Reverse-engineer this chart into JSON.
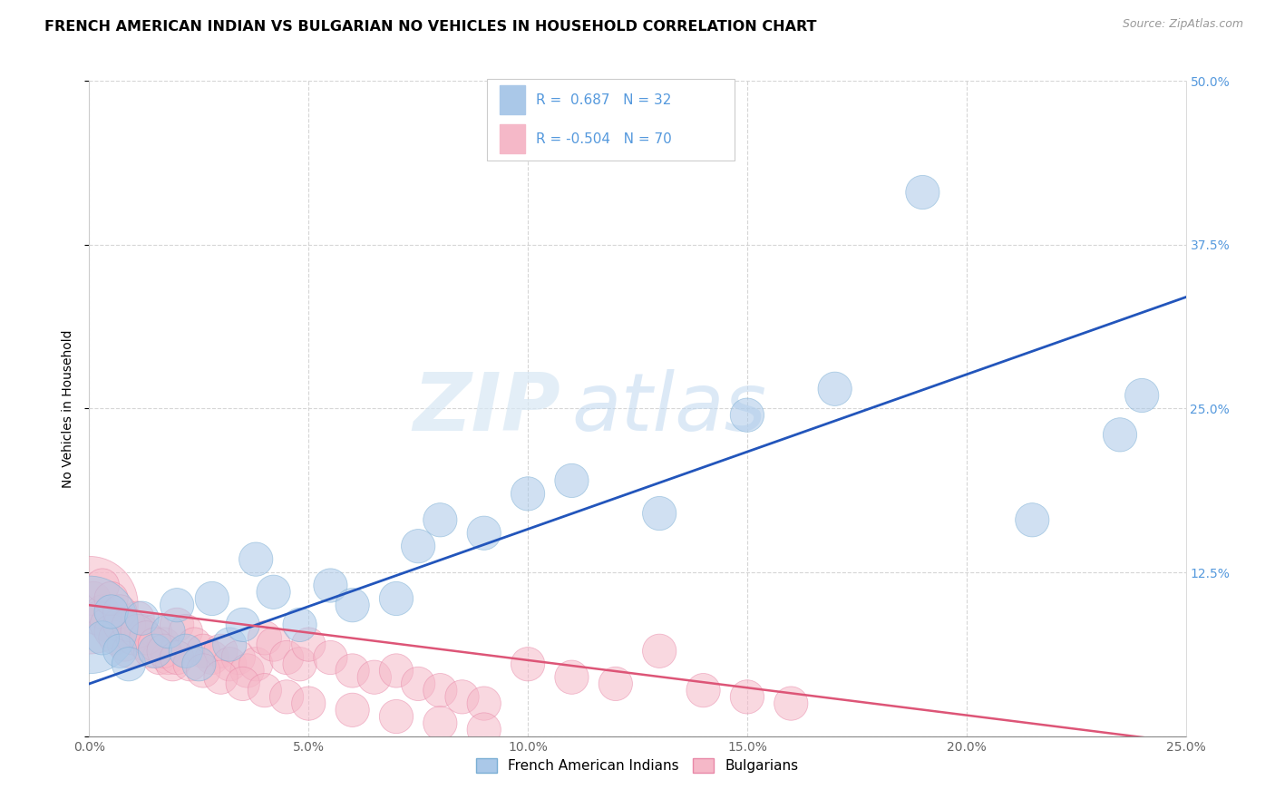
{
  "title": "FRENCH AMERICAN INDIAN VS BULGARIAN NO VEHICLES IN HOUSEHOLD CORRELATION CHART",
  "source": "Source: ZipAtlas.com",
  "ylabel": "No Vehicles in Household",
  "watermark_zip": "ZIP",
  "watermark_atlas": "atlas",
  "xlim": [
    0.0,
    0.25
  ],
  "ylim": [
    0.0,
    0.5
  ],
  "blue_R": 0.687,
  "blue_N": 32,
  "pink_R": -0.504,
  "pink_N": 70,
  "blue_color": "#aac8e8",
  "pink_color": "#f5b8c8",
  "blue_edge_color": "#7aaed4",
  "pink_edge_color": "#e888a8",
  "blue_line_color": "#2255bb",
  "pink_line_color": "#dd5577",
  "legend_label_blue": "French American Indians",
  "legend_label_pink": "Bulgarians",
  "blue_scatter_x": [
    0.0,
    0.003,
    0.005,
    0.007,
    0.009,
    0.012,
    0.015,
    0.018,
    0.02,
    0.022,
    0.025,
    0.028,
    0.032,
    0.035,
    0.038,
    0.042,
    0.048,
    0.055,
    0.06,
    0.07,
    0.075,
    0.08,
    0.09,
    0.1,
    0.11,
    0.13,
    0.15,
    0.17,
    0.19,
    0.215,
    0.235,
    0.24
  ],
  "blue_scatter_y": [
    0.085,
    0.075,
    0.095,
    0.065,
    0.055,
    0.09,
    0.065,
    0.08,
    0.1,
    0.065,
    0.055,
    0.105,
    0.07,
    0.085,
    0.135,
    0.11,
    0.085,
    0.115,
    0.1,
    0.105,
    0.145,
    0.165,
    0.155,
    0.185,
    0.195,
    0.17,
    0.245,
    0.265,
    0.415,
    0.165,
    0.23,
    0.26
  ],
  "blue_scatter_size": [
    500,
    60,
    60,
    60,
    60,
    60,
    60,
    60,
    60,
    60,
    60,
    60,
    60,
    60,
    60,
    60,
    60,
    60,
    60,
    60,
    60,
    60,
    60,
    60,
    60,
    60,
    60,
    60,
    60,
    60,
    60,
    60
  ],
  "pink_scatter_x": [
    0.0,
    0.001,
    0.002,
    0.003,
    0.004,
    0.005,
    0.006,
    0.007,
    0.008,
    0.009,
    0.01,
    0.011,
    0.012,
    0.013,
    0.014,
    0.015,
    0.016,
    0.017,
    0.018,
    0.019,
    0.02,
    0.022,
    0.024,
    0.026,
    0.028,
    0.03,
    0.032,
    0.034,
    0.036,
    0.038,
    0.04,
    0.042,
    0.045,
    0.048,
    0.05,
    0.055,
    0.06,
    0.065,
    0.07,
    0.075,
    0.08,
    0.085,
    0.09,
    0.1,
    0.11,
    0.12,
    0.13,
    0.14,
    0.15,
    0.16,
    0.003,
    0.005,
    0.007,
    0.009,
    0.011,
    0.013,
    0.015,
    0.017,
    0.02,
    0.023,
    0.026,
    0.03,
    0.035,
    0.04,
    0.045,
    0.05,
    0.06,
    0.07,
    0.08,
    0.09
  ],
  "pink_scatter_y": [
    0.1,
    0.105,
    0.09,
    0.095,
    0.085,
    0.08,
    0.075,
    0.085,
    0.07,
    0.065,
    0.075,
    0.09,
    0.08,
    0.07,
    0.065,
    0.08,
    0.06,
    0.07,
    0.06,
    0.055,
    0.085,
    0.08,
    0.07,
    0.065,
    0.06,
    0.065,
    0.055,
    0.06,
    0.05,
    0.055,
    0.075,
    0.07,
    0.06,
    0.055,
    0.07,
    0.06,
    0.05,
    0.045,
    0.05,
    0.04,
    0.035,
    0.03,
    0.025,
    0.055,
    0.045,
    0.04,
    0.065,
    0.035,
    0.03,
    0.025,
    0.115,
    0.105,
    0.095,
    0.085,
    0.08,
    0.075,
    0.07,
    0.065,
    0.06,
    0.055,
    0.05,
    0.045,
    0.04,
    0.035,
    0.03,
    0.025,
    0.02,
    0.015,
    0.01,
    0.005
  ],
  "pink_scatter_size": [
    500,
    60,
    60,
    60,
    60,
    60,
    60,
    60,
    60,
    60,
    60,
    60,
    60,
    60,
    60,
    60,
    60,
    60,
    60,
    60,
    60,
    60,
    60,
    60,
    60,
    60,
    60,
    60,
    60,
    60,
    60,
    60,
    60,
    60,
    60,
    60,
    60,
    60,
    60,
    60,
    60,
    60,
    60,
    60,
    60,
    60,
    60,
    60,
    60,
    60,
    60,
    60,
    60,
    60,
    60,
    60,
    60,
    60,
    60,
    60,
    60,
    60,
    60,
    60,
    60,
    60,
    60,
    60,
    60,
    60
  ],
  "blue_line_x": [
    0.0,
    0.25
  ],
  "blue_line_y": [
    0.04,
    0.335
  ],
  "pink_line_x": [
    0.0,
    0.25
  ],
  "pink_line_y": [
    0.1,
    -0.005
  ],
  "grid_color": "#cccccc",
  "bg_color": "#ffffff",
  "title_fontsize": 11.5,
  "axis_fontsize": 10,
  "tick_fontsize": 10,
  "right_tick_color": "#5599dd"
}
